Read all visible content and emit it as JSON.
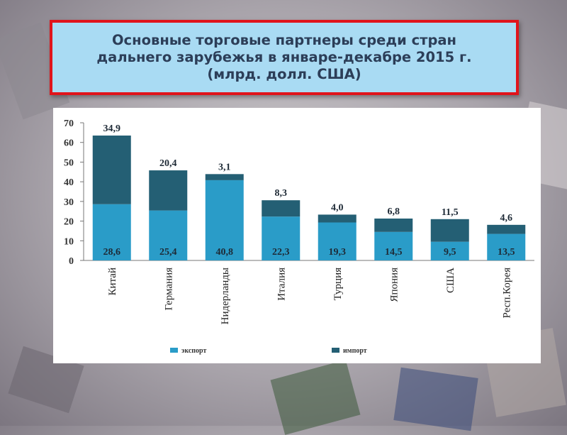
{
  "slide": {
    "title": "Основные торговые партнеры среди стран\nдальнего зарубежья в январе-декабре 2015 г.\n(млрд. долл. США)"
  },
  "chart_data": {
    "type": "bar",
    "stacked": true,
    "categories": [
      "Китай",
      "Германия",
      "Нидерланды",
      "Италия",
      "Турция",
      "Япония",
      "США",
      "Респ.Корея"
    ],
    "series": [
      {
        "name": "экспорт",
        "color": "#2a9cc8",
        "values": [
          28.6,
          25.4,
          40.8,
          22.3,
          19.3,
          14.5,
          9.5,
          13.5
        ],
        "labels": [
          "28,6",
          "25,4",
          "40,8",
          "22,3",
          "19,3",
          "14,5",
          "9,5",
          "13,5"
        ]
      },
      {
        "name": "импорт",
        "color": "#245f74",
        "values": [
          34.9,
          20.4,
          3.1,
          8.3,
          4.0,
          6.8,
          11.5,
          4.6
        ],
        "labels": [
          "34,9",
          "20,4",
          "3,1",
          "8,3",
          "4,0",
          "6,8",
          "11,5",
          "4,6"
        ]
      }
    ],
    "yticks": [
      "0",
      "10",
      "20",
      "30",
      "40",
      "50",
      "60",
      "70"
    ],
    "ylim": [
      0,
      70
    ],
    "grid": false,
    "legend": "bottom"
  }
}
